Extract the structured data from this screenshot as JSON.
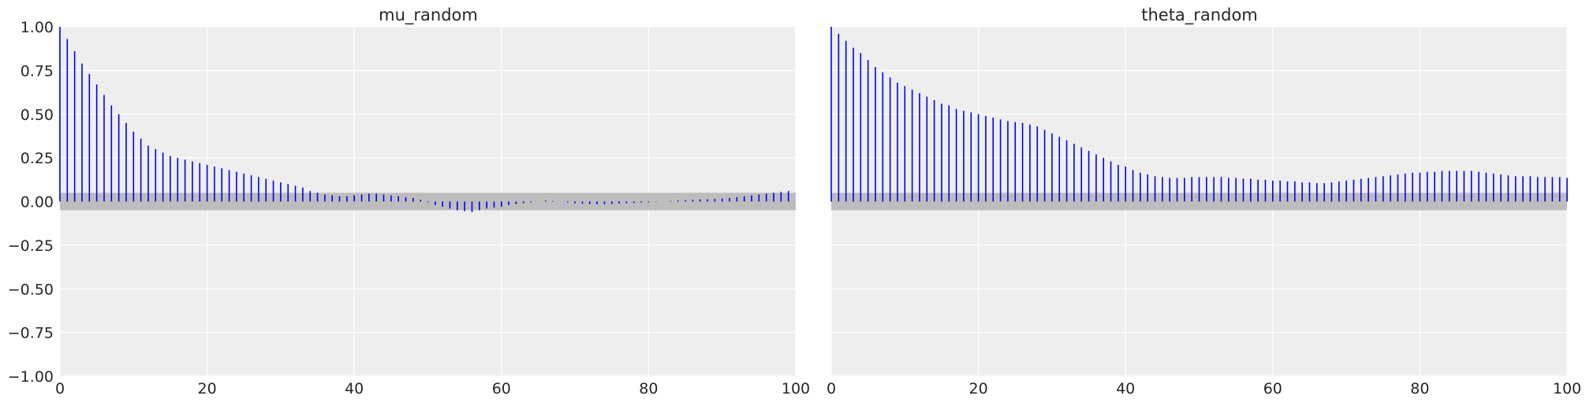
{
  "chart_data": [
    {
      "type": "bar",
      "title": "mu_random",
      "xlabel": "",
      "ylabel": "",
      "xlim": [
        0,
        100
      ],
      "ylim": [
        -1.0,
        1.0
      ],
      "xticks": [
        "0",
        "20",
        "40",
        "60",
        "80",
        "100"
      ],
      "yticks": [
        "1.00",
        "0.75",
        "0.50",
        "0.25",
        "0.00",
        "−0.25",
        "−0.50",
        "−0.75",
        "−1.00"
      ],
      "grid": true,
      "band": [
        -0.05,
        0.05
      ],
      "x_start": 0,
      "values": [
        1.0,
        0.93,
        0.86,
        0.79,
        0.73,
        0.67,
        0.61,
        0.55,
        0.5,
        0.45,
        0.4,
        0.36,
        0.32,
        0.3,
        0.28,
        0.26,
        0.25,
        0.24,
        0.23,
        0.22,
        0.21,
        0.2,
        0.19,
        0.18,
        0.17,
        0.16,
        0.15,
        0.14,
        0.13,
        0.12,
        0.11,
        0.1,
        0.09,
        0.08,
        0.06,
        0.05,
        0.04,
        0.035,
        0.03,
        0.03,
        0.035,
        0.04,
        0.045,
        0.045,
        0.04,
        0.035,
        0.03,
        0.025,
        0.02,
        0.01,
        -0.005,
        -0.02,
        -0.03,
        -0.04,
        -0.05,
        -0.055,
        -0.06,
        -0.05,
        -0.04,
        -0.035,
        -0.03,
        -0.02,
        -0.015,
        -0.01,
        -0.005,
        0.0,
        0.005,
        0.003,
        0.0,
        -0.005,
        -0.01,
        -0.012,
        -0.015,
        -0.015,
        -0.015,
        -0.014,
        -0.012,
        -0.01,
        -0.008,
        -0.006,
        -0.005,
        -0.002,
        0.0,
        0.003,
        0.006,
        0.008,
        0.01,
        0.012,
        0.013,
        0.015,
        0.017,
        0.02,
        0.025,
        0.03,
        0.035,
        0.04,
        0.045,
        0.05,
        0.055,
        0.06
      ]
    },
    {
      "type": "bar",
      "title": "theta_random",
      "xlabel": "",
      "ylabel": "",
      "xlim": [
        0,
        100
      ],
      "ylim": [
        -1.0,
        1.0
      ],
      "xticks": [
        "0",
        "20",
        "40",
        "60",
        "80",
        "100"
      ],
      "yticks": [],
      "grid": true,
      "band": [
        -0.05,
        0.05
      ],
      "x_start": 0,
      "values": [
        1.0,
        0.96,
        0.92,
        0.88,
        0.85,
        0.81,
        0.77,
        0.74,
        0.71,
        0.68,
        0.66,
        0.64,
        0.62,
        0.6,
        0.58,
        0.56,
        0.55,
        0.53,
        0.52,
        0.51,
        0.5,
        0.49,
        0.48,
        0.47,
        0.46,
        0.455,
        0.45,
        0.44,
        0.43,
        0.41,
        0.39,
        0.37,
        0.35,
        0.33,
        0.31,
        0.29,
        0.27,
        0.25,
        0.23,
        0.21,
        0.2,
        0.18,
        0.165,
        0.155,
        0.145,
        0.14,
        0.135,
        0.135,
        0.135,
        0.14,
        0.14,
        0.14,
        0.14,
        0.14,
        0.135,
        0.135,
        0.13,
        0.13,
        0.125,
        0.125,
        0.12,
        0.12,
        0.115,
        0.115,
        0.11,
        0.11,
        0.105,
        0.105,
        0.11,
        0.115,
        0.12,
        0.125,
        0.13,
        0.135,
        0.14,
        0.145,
        0.15,
        0.155,
        0.16,
        0.165,
        0.165,
        0.17,
        0.17,
        0.175,
        0.175,
        0.175,
        0.175,
        0.175,
        0.17,
        0.165,
        0.16,
        0.155,
        0.15,
        0.145,
        0.145,
        0.145,
        0.14,
        0.14,
        0.14,
        0.14,
        0.135
      ]
    }
  ],
  "colors": {
    "stem": "#0000ee",
    "band": "#bdbdbd",
    "panel_bg": "#eeeeee",
    "grid": "#ffffff",
    "text": "#262626"
  }
}
